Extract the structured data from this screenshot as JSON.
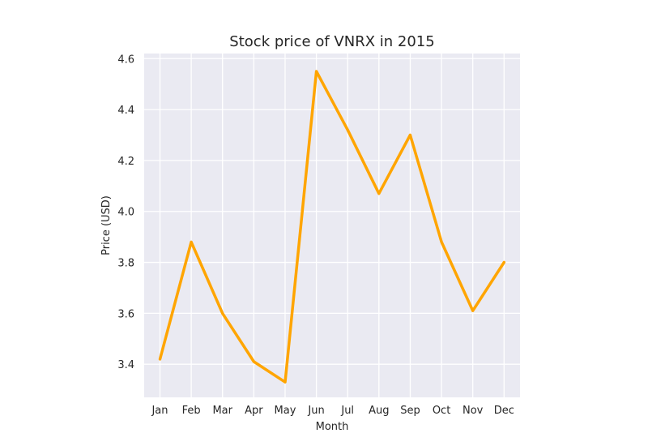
{
  "chart_data": {
    "type": "line",
    "title": "Stock price of VNRX in 2015",
    "xlabel": "Month",
    "ylabel": "Price (USD)",
    "categories": [
      "Jan",
      "Feb",
      "Mar",
      "Apr",
      "May",
      "Jun",
      "Jul",
      "Aug",
      "Sep",
      "Oct",
      "Nov",
      "Dec"
    ],
    "values": [
      3.42,
      3.88,
      3.6,
      3.41,
      3.33,
      4.55,
      4.32,
      4.07,
      4.3,
      3.88,
      3.61,
      3.8
    ],
    "ylim": [
      3.27,
      4.62
    ],
    "yticks": [
      "3.4",
      "3.6",
      "3.8",
      "4.0",
      "4.2",
      "4.4",
      "4.6"
    ],
    "grid": true,
    "background": "#eaeaf2",
    "grid_color": "#ffffff",
    "line_color": "#ffa500"
  }
}
